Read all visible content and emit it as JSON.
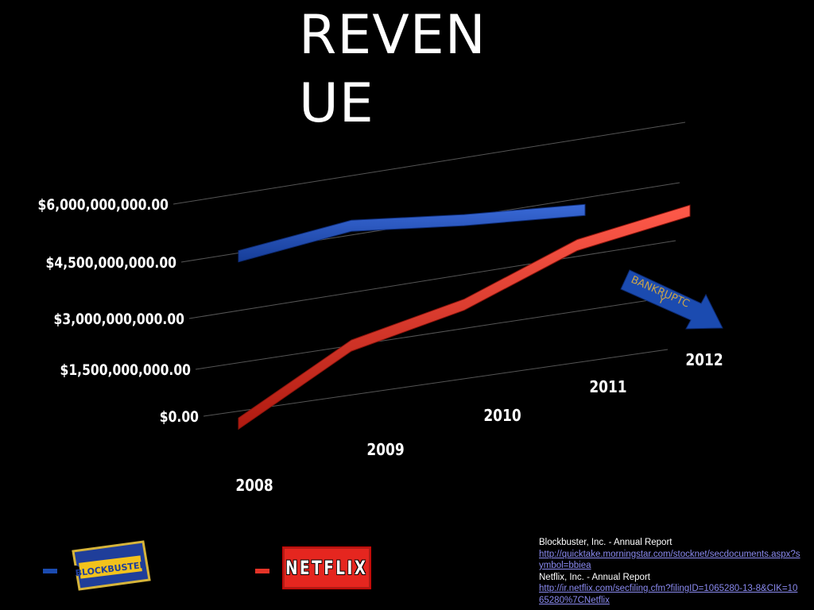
{
  "slide": {
    "title": "REVENUE",
    "title_line1": "REVEN",
    "title_line2": "UE"
  },
  "chart_data": {
    "type": "line",
    "title": "REVENUE",
    "categories": [
      "2008",
      "2009",
      "2010",
      "2011",
      "2012"
    ],
    "series": [
      {
        "name": "Blockbuster",
        "color": "#1b4bb0",
        "values": [
          4300000000,
          4600000000,
          4300000000,
          4100000000,
          null
        ]
      },
      {
        "name": "Netflix",
        "color": "#e53327",
        "values": [
          350000000,
          1700000000,
          2200000000,
          3200000000,
          3600000000
        ]
      }
    ],
    "y_ticks": [
      "$0.00",
      "$1,500,000,000.00",
      "$3,000,000,000.00",
      "$4,500,000,000.00",
      "$6,000,000,000.00"
    ],
    "ylim": [
      0,
      6000000000
    ],
    "grid": true,
    "annotation": {
      "text_line1": "BANKRUPTC",
      "text_line2": "Y",
      "color": "#1b4bb0"
    }
  },
  "legend": {
    "blockbuster_logo_text": "BLOCKBUSTER",
    "netflix_logo_text": "NETFLIX"
  },
  "sources": {
    "line1": "Blockbuster, Inc. - Annual Report",
    "link1": "http://quicktake.morningstar.com/stocknet/secdocuments.aspx?symbol=bbiea",
    "line2": "Netflix, Inc. - Annual Report",
    "link2": "http://ir.netflix.com/secfiling.cfm?filingID=1065280-13-8&CIK=1065280%7CNetflix"
  }
}
